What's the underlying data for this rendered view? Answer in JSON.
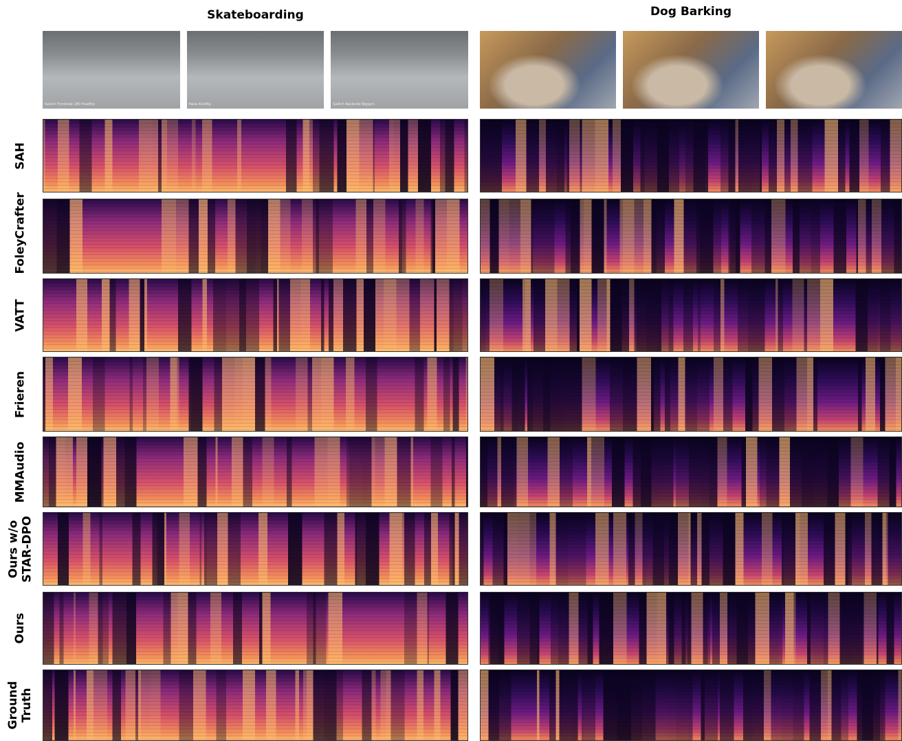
{
  "columns": [
    {
      "title": "Skateboarding",
      "frames": [
        "Switch Frontside 180 Heelflip",
        "False Kickflip",
        "Switch Backside Bigspin"
      ]
    },
    {
      "title": "Dog Barking",
      "frames": [
        "",
        "",
        ""
      ]
    }
  ],
  "rows": [
    {
      "label": [
        "SAH"
      ]
    },
    {
      "label": [
        "FoleyCrafter"
      ]
    },
    {
      "label": [
        "VATT"
      ]
    },
    {
      "label": [
        "Frieren"
      ]
    },
    {
      "label": [
        "MMAudio"
      ]
    },
    {
      "label": [
        "Ours w/o",
        "STAR-DPO"
      ]
    },
    {
      "label": [
        "Ours"
      ]
    },
    {
      "label": [
        "Ground",
        "Truth"
      ]
    }
  ]
}
